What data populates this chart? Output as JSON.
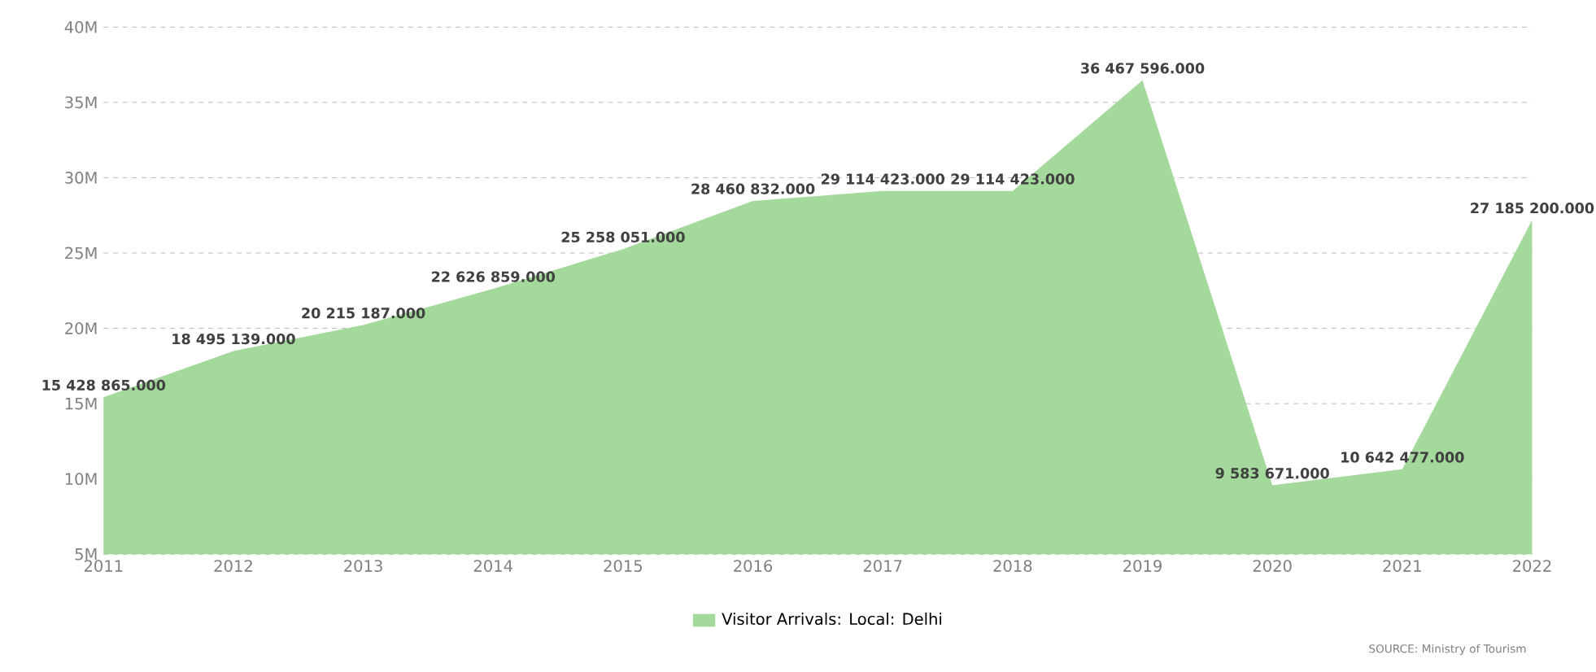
{
  "chart_data": {
    "type": "area",
    "x": [
      2011,
      2012,
      2013,
      2014,
      2015,
      2016,
      2017,
      2018,
      2019,
      2020,
      2021,
      2022
    ],
    "series": [
      {
        "name": "Visitor Arrivals: Local: Delhi",
        "color": "#a3d99a",
        "values": [
          15428865,
          18495139,
          20215187,
          22626859,
          25258051,
          28460832,
          29114423,
          29114423,
          36467596,
          9583671,
          10642477,
          27185200
        ],
        "value_labels": [
          "15 428 865.000",
          "18 495 139.000",
          "20 215 187.000",
          "22 626 859.000",
          "25 258 051.000",
          "28 460 832.000",
          "29 114 423.000",
          "29 114 423.000",
          "36 467 596.000",
          "9 583 671.000",
          "10 642 477.000",
          "27 185 200.000"
        ]
      }
    ],
    "xlim": [
      2011,
      2022
    ],
    "xticks": [
      2011,
      2012,
      2013,
      2014,
      2015,
      2016,
      2017,
      2018,
      2019,
      2020,
      2021,
      2022
    ],
    "ylim": [
      5000000,
      40000000
    ],
    "yticks": [
      {
        "value": 5000000,
        "label": "5M"
      },
      {
        "value": 10000000,
        "label": "10M"
      },
      {
        "value": 15000000,
        "label": "15M"
      },
      {
        "value": 20000000,
        "label": "20M"
      },
      {
        "value": 25000000,
        "label": "25M"
      },
      {
        "value": 30000000,
        "label": "30M"
      },
      {
        "value": 35000000,
        "label": "35M"
      },
      {
        "value": 40000000,
        "label": "40M"
      }
    ],
    "grid": "y",
    "legend": "bottom",
    "annotations": [
      "SOURCE: Ministry of Tourism"
    ]
  }
}
